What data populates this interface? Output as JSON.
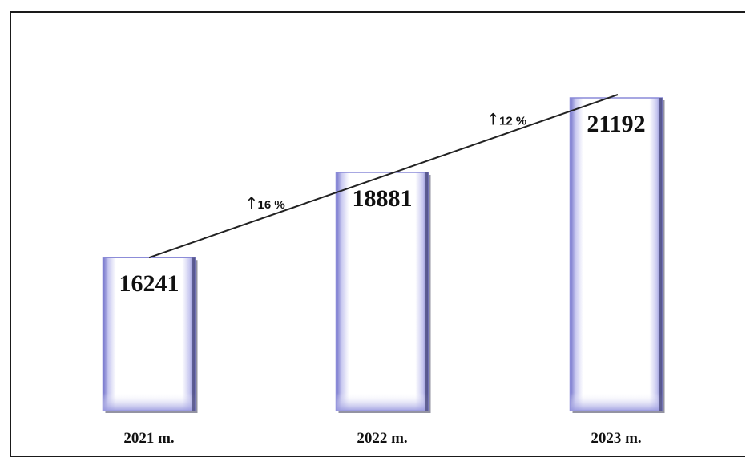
{
  "chart_data": {
    "type": "bar",
    "categories": [
      "2021 m.",
      "2022 m.",
      "2023 m."
    ],
    "values": [
      16241,
      18881,
      21192
    ],
    "value_labels": [
      "16241",
      "18881",
      "21192"
    ],
    "growth_annotations": [
      {
        "between": [
          "2021 m.",
          "2022 m."
        ],
        "text": "16 %",
        "arrow": "↑"
      },
      {
        "between": [
          "2022 m.",
          "2023 m."
        ],
        "text": "12 %",
        "arrow": "↑"
      }
    ],
    "trend_line": true,
    "title": "",
    "xlabel": "",
    "ylabel": "",
    "grid": false,
    "legend": "none",
    "colors": {
      "bar_fill": "#ffffff",
      "bar_edge": "#8a8ad8",
      "bar_shadow": "#3a3a55",
      "text": "#111111",
      "frame": "#1a1a1a"
    }
  }
}
